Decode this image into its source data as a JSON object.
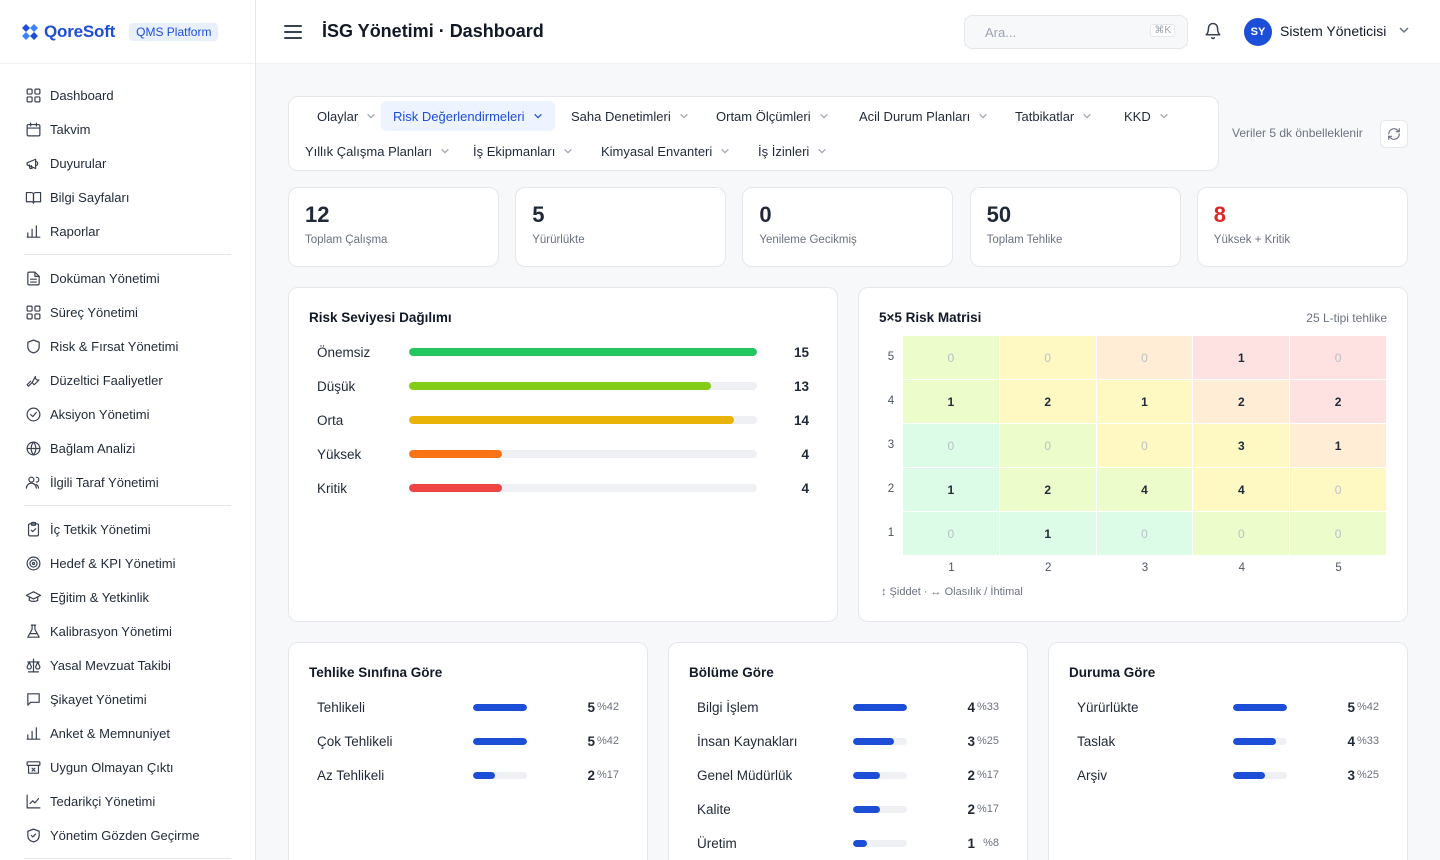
{
  "brand": {
    "name": "QoreSoft",
    "badge": "QMS Platform"
  },
  "sidebar": {
    "groups": [
      [
        {
          "label": "Dashboard",
          "icon": "grid-icon"
        },
        {
          "label": "Takvim",
          "icon": "calendar-icon"
        },
        {
          "label": "Duyurular",
          "icon": "megaphone-icon"
        },
        {
          "label": "Bilgi Sayfaları",
          "icon": "book-icon"
        },
        {
          "label": "Raporlar",
          "icon": "bar-chart-icon"
        }
      ],
      [
        {
          "label": "Doküman Yönetimi",
          "icon": "document-icon"
        },
        {
          "label": "Süreç Yönetimi",
          "icon": "grid-icon"
        },
        {
          "label": "Risk & Fırsat Yönetimi",
          "icon": "shield-icon"
        },
        {
          "label": "Düzeltici Faaliyetler",
          "icon": "wrench-icon"
        },
        {
          "label": "Aksiyon Yönetimi",
          "icon": "check-circle-icon"
        },
        {
          "label": "Bağlam Analizi",
          "icon": "globe-icon"
        },
        {
          "label": "İlgili Taraf Yönetimi",
          "icon": "users-icon"
        }
      ],
      [
        {
          "label": "İç Tetkik Yönetimi",
          "icon": "clipboard-check-icon"
        },
        {
          "label": "Hedef & KPI Yönetimi",
          "icon": "target-icon"
        },
        {
          "label": "Eğitim & Yetkinlik",
          "icon": "graduation-cap-icon"
        },
        {
          "label": "Kalibrasyon Yönetimi",
          "icon": "flask-icon"
        },
        {
          "label": "Yasal Mevzuat Takibi",
          "icon": "scale-icon"
        },
        {
          "label": "Şikayet Yönetimi",
          "icon": "message-icon"
        },
        {
          "label": "Anket & Memnuniyet",
          "icon": "bar-chart-icon"
        },
        {
          "label": "Uygun Olmayan Çıktı",
          "icon": "archive-x-icon"
        },
        {
          "label": "Tedarikçi Yönetimi",
          "icon": "chart-line-icon"
        },
        {
          "label": "Yönetim Gözden Geçirme",
          "icon": "shield-check-icon"
        }
      ]
    ]
  },
  "header": {
    "title": "İSG Yönetimi · Dashboard",
    "search_placeholder": "Ara...",
    "search_shortcut": "⌘K",
    "user_initials": "SY",
    "user_name": "Sistem Yöneticisi"
  },
  "tabs": [
    {
      "label": "Olaylar",
      "active": false
    },
    {
      "label": "Risk Değerlendirmeleri",
      "active": true
    },
    {
      "label": "Saha Denetimleri",
      "active": false
    },
    {
      "label": "Ortam Ölçümleri",
      "active": false
    },
    {
      "label": "Acil Durum Planları",
      "active": false
    },
    {
      "label": "Tatbikatlar",
      "active": false
    },
    {
      "label": "KKD",
      "active": false
    },
    {
      "label": "Yıllık Çalışma Planları",
      "active": false
    },
    {
      "label": "İş Ekipmanları",
      "active": false
    },
    {
      "label": "Kimyasal Envanteri",
      "active": false
    },
    {
      "label": "İş İzinleri",
      "active": false
    }
  ],
  "cache_note": "Veriler 5 dk önbelleklenir",
  "stats": [
    {
      "value": "12",
      "label": "Toplam Çalışma",
      "highlight": false
    },
    {
      "value": "5",
      "label": "Yürürlükte",
      "highlight": false
    },
    {
      "value": "0",
      "label": "Yenileme Gecikmiş",
      "highlight": false
    },
    {
      "value": "50",
      "label": "Toplam Tehlike",
      "highlight": false
    },
    {
      "value": "8",
      "label": "Yüksek + Kritik",
      "highlight": true
    }
  ],
  "risk_distribution": {
    "title": "Risk Seviyesi Dağılımı",
    "max": 15,
    "rows": [
      {
        "label": "Önemsiz",
        "value": 15,
        "color": "#22c55e"
      },
      {
        "label": "Düşük",
        "value": 13,
        "color": "#84cc16"
      },
      {
        "label": "Orta",
        "value": 14,
        "color": "#eab308"
      },
      {
        "label": "Yüksek",
        "value": 4,
        "color": "#f97316"
      },
      {
        "label": "Kritik",
        "value": 4,
        "color": "#ef4444"
      }
    ]
  },
  "matrix": {
    "title": "5×5 Risk Matrisi",
    "subtitle": "25 L-tipi tehlike",
    "y_labels": [
      "5",
      "4",
      "3",
      "2",
      "1"
    ],
    "x_labels": [
      "1",
      "2",
      "3",
      "4",
      "5"
    ],
    "rows": [
      [
        0,
        0,
        0,
        1,
        0
      ],
      [
        1,
        2,
        1,
        2,
        2
      ],
      [
        0,
        0,
        0,
        3,
        1
      ],
      [
        1,
        2,
        4,
        4,
        0
      ],
      [
        0,
        1,
        0,
        0,
        0
      ]
    ],
    "colors": [
      [
        "#ecfccb",
        "#fef9c3",
        "#ffedd5",
        "#fee2e2",
        "#fee2e2"
      ],
      [
        "#ecfccb",
        "#fef9c3",
        "#fef9c3",
        "#ffedd5",
        "#fee2e2"
      ],
      [
        "#dcfce7",
        "#ecfccb",
        "#fef9c3",
        "#fef9c3",
        "#ffedd5"
      ],
      [
        "#dcfce7",
        "#ecfccb",
        "#ecfccb",
        "#fef9c3",
        "#fef9c3"
      ],
      [
        "#dcfce7",
        "#dcfce7",
        "#dcfce7",
        "#ecfccb",
        "#ecfccb"
      ]
    ],
    "legend": "↕ Şiddet  ·  ↔ Olasılık / İhtimal"
  },
  "breakdowns": [
    {
      "title": "Tehlike Sınıfına Göre",
      "rows": [
        {
          "label": "Tehlikeli",
          "count": "5",
          "pct": "%42",
          "frac": 1.0
        },
        {
          "label": "Çok Tehlikeli",
          "count": "5",
          "pct": "%42",
          "frac": 1.0
        },
        {
          "label": "Az Tehlikeli",
          "count": "2",
          "pct": "%17",
          "frac": 0.4
        }
      ]
    },
    {
      "title": "Bölüme Göre",
      "rows": [
        {
          "label": "Bilgi İşlem",
          "count": "4",
          "pct": "%33",
          "frac": 1.0
        },
        {
          "label": "İnsan Kaynakları",
          "count": "3",
          "pct": "%25",
          "frac": 0.75
        },
        {
          "label": "Genel Müdürlük",
          "count": "2",
          "pct": "%17",
          "frac": 0.5
        },
        {
          "label": "Kalite",
          "count": "2",
          "pct": "%17",
          "frac": 0.5
        },
        {
          "label": "Üretim",
          "count": "1",
          "pct": "%8",
          "frac": 0.25
        }
      ]
    },
    {
      "title": "Duruma Göre",
      "rows": [
        {
          "label": "Yürürlükte",
          "count": "5",
          "pct": "%42",
          "frac": 1.0
        },
        {
          "label": "Taslak",
          "count": "4",
          "pct": "%33",
          "frac": 0.8
        },
        {
          "label": "Arşiv",
          "count": "3",
          "pct": "%25",
          "frac": 0.6
        }
      ]
    }
  ]
}
